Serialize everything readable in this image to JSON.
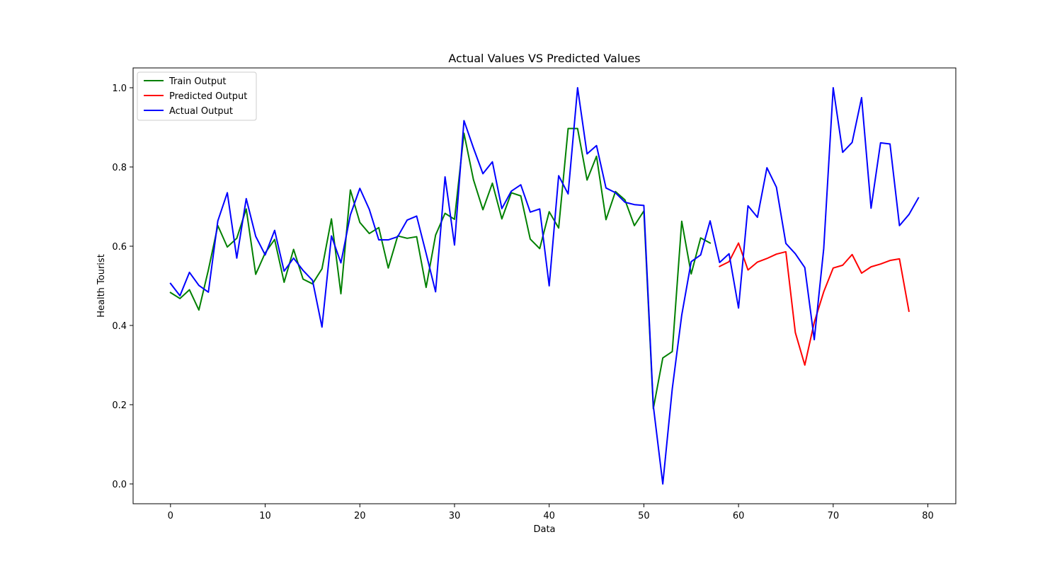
{
  "chart_data": {
    "type": "line",
    "title": "Actual Values VS Predicted Values",
    "xlabel": "Data",
    "ylabel": "Health Tourist",
    "xlim": [
      -3.95,
      82.95
    ],
    "ylim": [
      -0.05,
      1.05
    ],
    "x_ticks": [
      0,
      10,
      20,
      30,
      40,
      50,
      60,
      70,
      80
    ],
    "y_ticks": [
      0.0,
      0.2,
      0.4,
      0.6,
      0.8,
      1.0
    ],
    "x_tick_labels": [
      "0",
      "10",
      "20",
      "30",
      "40",
      "50",
      "60",
      "70",
      "80"
    ],
    "y_tick_labels": [
      "0.0",
      "0.2",
      "0.4",
      "0.6",
      "0.8",
      "1.0"
    ],
    "grid": false,
    "legend_position": "upper-left",
    "series": [
      {
        "name": "Train Output",
        "color": "#008000",
        "x_start": 0,
        "values": [
          0.483,
          0.468,
          0.49,
          0.439,
          0.54,
          0.652,
          0.598,
          0.62,
          0.694,
          0.529,
          0.583,
          0.617,
          0.509,
          0.592,
          0.517,
          0.505,
          0.543,
          0.669,
          0.48,
          0.742,
          0.66,
          0.632,
          0.647,
          0.545,
          0.626,
          0.62,
          0.624,
          0.496,
          0.628,
          0.683,
          0.668,
          0.885,
          0.768,
          0.692,
          0.759,
          0.669,
          0.735,
          0.727,
          0.618,
          0.594,
          0.687,
          0.646,
          0.897,
          0.897,
          0.767,
          0.827,
          0.667,
          0.738,
          0.717,
          0.652,
          0.689,
          0.19,
          0.318,
          0.334,
          0.663,
          0.53,
          0.621,
          0.608
        ]
      },
      {
        "name": "Predicted Output",
        "color": "#ff0000",
        "x_start": 58,
        "values": [
          0.549,
          0.561,
          0.608,
          0.54,
          0.56,
          0.569,
          0.58,
          0.586,
          0.382,
          0.3,
          0.408,
          0.485,
          0.545,
          0.552,
          0.579,
          0.532,
          0.548,
          0.555,
          0.564,
          0.568,
          0.436
        ]
      },
      {
        "name": "Actual Output",
        "color": "#0000ff",
        "x_start": 0,
        "values": [
          0.506,
          0.475,
          0.534,
          0.501,
          0.484,
          0.664,
          0.735,
          0.57,
          0.72,
          0.625,
          0.578,
          0.64,
          0.537,
          0.57,
          0.539,
          0.514,
          0.396,
          0.626,
          0.558,
          0.679,
          0.746,
          0.693,
          0.616,
          0.616,
          0.624,
          0.666,
          0.676,
          0.582,
          0.485,
          0.775,
          0.603,
          0.917,
          0.848,
          0.783,
          0.813,
          0.695,
          0.739,
          0.755,
          0.686,
          0.694,
          0.5,
          0.778,
          0.732,
          1.0,
          0.833,
          0.854,
          0.747,
          0.735,
          0.711,
          0.705,
          0.703,
          0.197,
          0.0,
          0.24,
          0.426,
          0.561,
          0.578,
          0.664,
          0.559,
          0.581,
          0.444,
          0.702,
          0.673,
          0.798,
          0.749,
          0.607,
          0.581,
          0.546,
          0.364,
          0.594,
          1.0,
          0.837,
          0.862,
          0.975,
          0.696,
          0.861,
          0.858,
          0.652,
          0.68,
          0.722
        ]
      }
    ]
  }
}
